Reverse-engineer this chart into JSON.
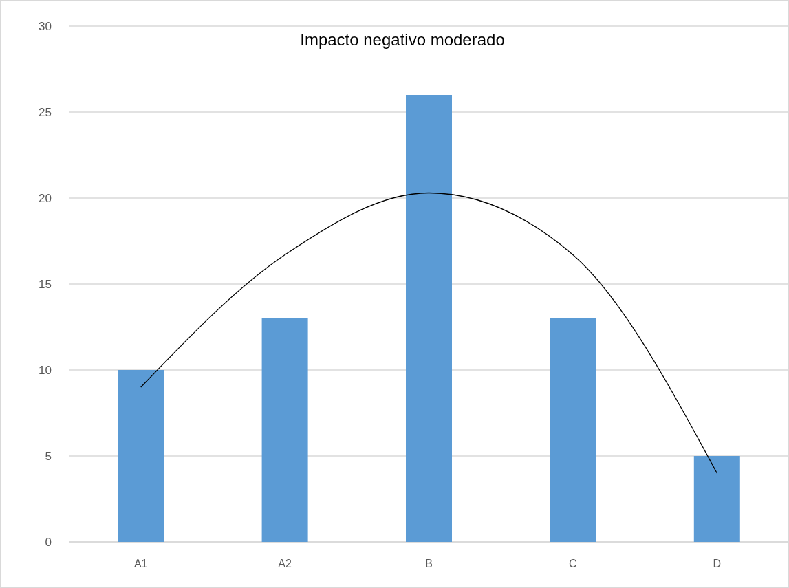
{
  "chart_data": {
    "type": "bar",
    "title": "Impacto negativo moderado",
    "categories": [
      "A1",
      "A2",
      "B",
      "C",
      "D"
    ],
    "series": [
      {
        "color": "#5b9bd5",
        "values": [
          10,
          13,
          26,
          13,
          5
        ]
      },
      {
        "type": "line",
        "color": "#000000",
        "values": [
          9,
          16.7,
          20.3,
          16.7,
          4
        ]
      }
    ],
    "ylim": [
      0,
      30
    ],
    "yticks": [
      0,
      5,
      10,
      15,
      20,
      25,
      30
    ],
    "grid": "y"
  }
}
